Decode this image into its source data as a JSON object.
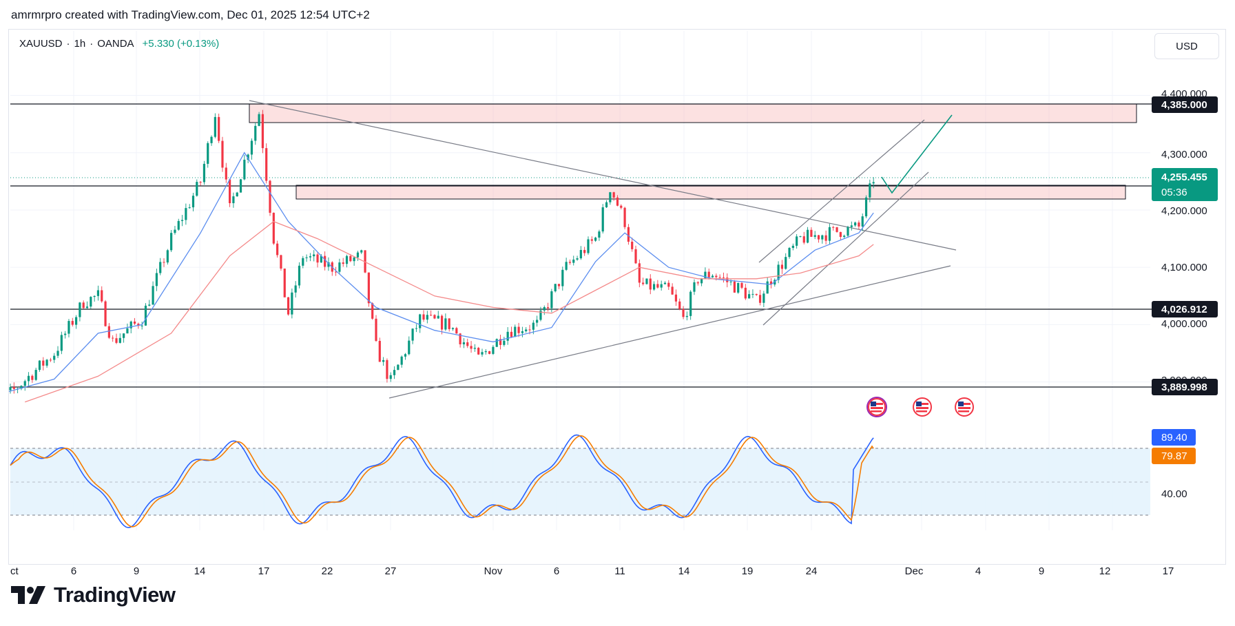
{
  "header": {
    "text": "amrmrpro created with TradingView.com, Dec 01, 2025 12:54 UTC+2"
  },
  "legend": {
    "symbol": "XAUUSD",
    "sep": "·",
    "interval": "1h",
    "broker": "OANDA",
    "change": "+5.330 (+0.13%)"
  },
  "currency_button": "USD",
  "brand": {
    "name": "TradingView",
    "logo_icon": "tradingview-logo-icon"
  },
  "price_axis": {
    "ticks": [
      "4,400.000",
      "4,300.000",
      "4,200.000",
      "4,100.000",
      "4,000.000",
      "3,900.000"
    ],
    "levels": [
      {
        "label": "4,385.000",
        "value": 4385
      },
      {
        "label": "4,026.912",
        "value": 4026.912
      },
      {
        "label": "3,889.998",
        "value": 3889.998
      }
    ],
    "last_price": {
      "label": "4,255.455",
      "countdown": "05:36",
      "value": 4255.455,
      "color": "#089981"
    }
  },
  "oscillator_axis": {
    "value_k": {
      "label": "89.40",
      "color": "#2962ff"
    },
    "value_d": {
      "label": "79.87",
      "color": "#f57c00"
    },
    "tick": "40.00"
  },
  "time_axis": [
    "ct",
    "6",
    "9",
    "14",
    "17",
    "22",
    "27",
    "Nov",
    "6",
    "11",
    "14",
    "19",
    "24",
    "Dec",
    "4",
    "9",
    "12",
    "17"
  ],
  "event_icons": [
    "us-flag-event-icon",
    "us-flag-event-icon",
    "us-flag-event-icon"
  ],
  "colors": {
    "up": "#089981",
    "down": "#f23645",
    "ma_fast": "#5b8def",
    "ma_slow": "#f48a8a",
    "zone": "#f7b1b1"
  },
  "chart_data": {
    "type": "candlestick",
    "symbol": "XAUUSD",
    "interval": "1h",
    "ylim": [
      3860,
      4420
    ],
    "x_ticks": [
      "ct",
      "6",
      "9",
      "14",
      "17",
      "22",
      "27",
      "Nov",
      "6",
      "11",
      "14",
      "19",
      "24",
      "Dec",
      "4",
      "9",
      "12",
      "17"
    ],
    "price_path": [
      {
        "x": "Oct 1",
        "close": 3860
      },
      {
        "x": "Oct 3",
        "close": 3880
      },
      {
        "x": "Oct 6",
        "close": 3950
      },
      {
        "x": "Oct 8",
        "close": 4040
      },
      {
        "x": "Oct 9",
        "close": 4050
      },
      {
        "x": "Oct 10",
        "close": 3970
      },
      {
        "x": "Oct 12",
        "close": 4010
      },
      {
        "x": "Oct 14",
        "close": 4150
      },
      {
        "x": "Oct 16",
        "close": 4250
      },
      {
        "x": "Oct 17",
        "close": 4370
      },
      {
        "x": "Oct 18",
        "close": 4200
      },
      {
        "x": "Oct 20",
        "close": 4370
      },
      {
        "x": "Oct 21",
        "close": 4150
      },
      {
        "x": "Oct 22",
        "close": 4020
      },
      {
        "x": "Oct 23",
        "close": 4120
      },
      {
        "x": "Oct 25",
        "close": 4100
      },
      {
        "x": "Oct 27",
        "close": 4120
      },
      {
        "x": "Oct 28",
        "close": 3960
      },
      {
        "x": "Oct 29",
        "close": 3900
      },
      {
        "x": "Oct 31",
        "close": 4010
      },
      {
        "x": "Nov 2",
        "close": 4000
      },
      {
        "x": "Nov 4",
        "close": 3940
      },
      {
        "x": "Nov 6",
        "close": 3990
      },
      {
        "x": "Nov 8",
        "close": 4000
      },
      {
        "x": "Nov 10",
        "close": 4100
      },
      {
        "x": "Nov 12",
        "close": 4150
      },
      {
        "x": "Nov 13",
        "close": 4240
      },
      {
        "x": "Nov 14",
        "close": 4180
      },
      {
        "x": "Nov 15",
        "close": 4070
      },
      {
        "x": "Nov 17",
        "close": 4060
      },
      {
        "x": "Nov 18",
        "close": 4010
      },
      {
        "x": "Nov 19",
        "close": 4080
      },
      {
        "x": "Nov 20",
        "close": 4090
      },
      {
        "x": "Nov 22",
        "close": 4060
      },
      {
        "x": "Nov 23",
        "close": 4040
      },
      {
        "x": "Nov 24",
        "close": 4080
      },
      {
        "x": "Nov 26",
        "close": 4150
      },
      {
        "x": "Nov 28",
        "close": 4160
      },
      {
        "x": "Nov 30",
        "close": 4170
      },
      {
        "x": "Dec 1",
        "close": 4255.455
      }
    ],
    "moving_averages": [
      {
        "name": "",
        "color": "#5b8def",
        "points": [
          {
            "x": "Oct 1",
            "y": 3870
          },
          {
            "x": "Oct 6",
            "y": 3905
          },
          {
            "x": "Oct 9",
            "y": 3985
          },
          {
            "x": "Oct 12",
            "y": 4000
          },
          {
            "x": "Oct 16",
            "y": 4160
          },
          {
            "x": "Oct 19",
            "y": 4300
          },
          {
            "x": "Oct 22",
            "y": 4180
          },
          {
            "x": "Oct 25",
            "y": 4100
          },
          {
            "x": "Oct 28",
            "y": 4030
          },
          {
            "x": "Nov 1",
            "y": 3990
          },
          {
            "x": "Nov 5",
            "y": 3970
          },
          {
            "x": "Nov 9",
            "y": 3995
          },
          {
            "x": "Nov 12",
            "y": 4110
          },
          {
            "x": "Nov 14",
            "y": 4160
          },
          {
            "x": "Nov 17",
            "y": 4100
          },
          {
            "x": "Nov 20",
            "y": 4080
          },
          {
            "x": "Nov 24",
            "y": 4070
          },
          {
            "x": "Nov 27",
            "y": 4130
          },
          {
            "x": "Nov 30",
            "y": 4160
          },
          {
            "x": "Dec 1",
            "y": 4195
          }
        ]
      },
      {
        "name": "",
        "color": "#f48a8a",
        "points": [
          {
            "x": "Oct 4",
            "y": 3865
          },
          {
            "x": "Oct 9",
            "y": 3910
          },
          {
            "x": "Oct 14",
            "y": 3985
          },
          {
            "x": "Oct 18",
            "y": 4120
          },
          {
            "x": "Oct 21",
            "y": 4180
          },
          {
            "x": "Oct 24",
            "y": 4150
          },
          {
            "x": "Oct 28",
            "y": 4100
          },
          {
            "x": "Nov 1",
            "y": 4050
          },
          {
            "x": "Nov 5",
            "y": 4030
          },
          {
            "x": "Nov 9",
            "y": 4020
          },
          {
            "x": "Nov 12",
            "y": 4060
          },
          {
            "x": "Nov 15",
            "y": 4100
          },
          {
            "x": "Nov 19",
            "y": 4080
          },
          {
            "x": "Nov 23",
            "y": 4080
          },
          {
            "x": "Nov 26",
            "y": 4090
          },
          {
            "x": "Nov 30",
            "y": 4120
          },
          {
            "x": "Dec 1",
            "y": 4140
          }
        ]
      }
    ],
    "horizontal_levels": [
      4385,
      4226,
      4026.912,
      3889.998
    ],
    "zones": [
      {
        "from": 4350,
        "to": 4383
      },
      {
        "from": 4215,
        "to": 4238
      }
    ],
    "oscillator": {
      "levels": [
        80,
        50,
        20
      ],
      "last_k": 89.4,
      "last_d": 79.87
    }
  }
}
